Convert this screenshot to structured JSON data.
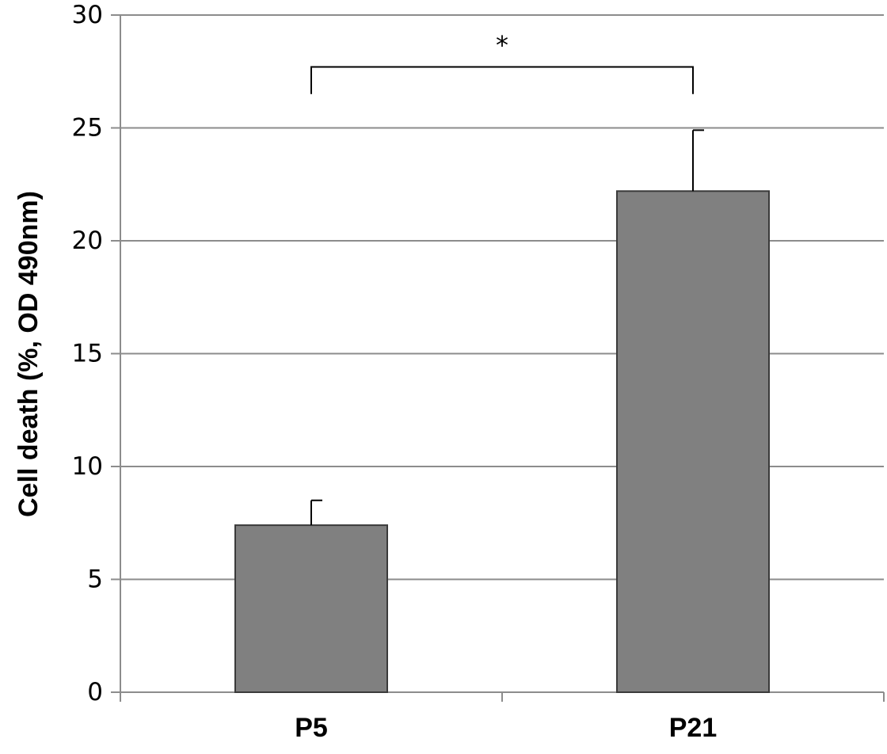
{
  "chart_data": {
    "type": "bar",
    "categories": [
      "P5",
      "P21"
    ],
    "values": [
      7.4,
      22.2
    ],
    "errors": [
      1.1,
      2.7
    ],
    "ylabel": "Cell death (%, OD 490nm)",
    "ylim": [
      0,
      30
    ],
    "yticks": [
      "0",
      "5",
      "10",
      "15",
      "20",
      "25",
      "30"
    ],
    "grid": true,
    "significance": {
      "between": [
        "P5",
        "P21"
      ],
      "label": "*"
    },
    "colors": {
      "bar": "#808080",
      "bar_edge": "#3a3a3a",
      "grid": "#8c8c8c"
    }
  }
}
